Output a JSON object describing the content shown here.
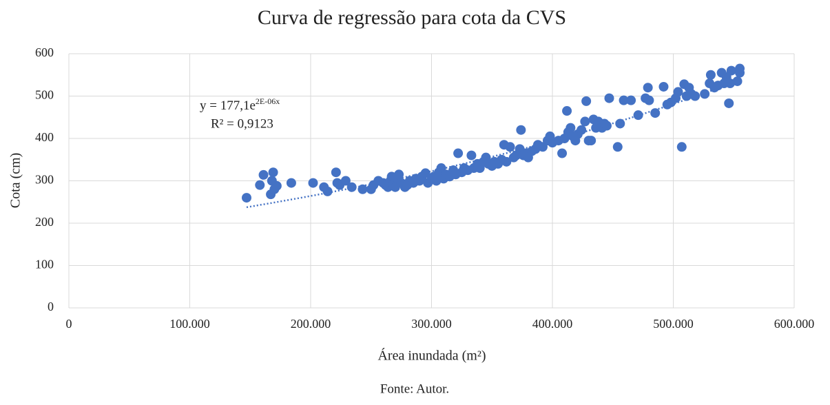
{
  "chart_data": {
    "type": "scatter",
    "title": "Curva de regressão para cota da CVS",
    "xlabel": "Área inundada (m²)",
    "ylabel": "Cota (cm)",
    "footer": "Fonte: Autor.",
    "color": "#4472c4",
    "grid": true,
    "xlim": [
      0,
      600000
    ],
    "ylim": [
      0,
      600
    ],
    "xticks": [
      0,
      {
        "value": 100000,
        "label": "100.000"
      },
      {
        "value": 200000,
        "label": "200.000"
      },
      {
        "value": 300000,
        "label": "300.000"
      },
      {
        "value": 400000,
        "label": "400.000"
      },
      {
        "value": 500000,
        "label": "500.000"
      },
      {
        "value": 600000,
        "label": "600.000"
      }
    ],
    "yticks": [
      0,
      100,
      200,
      300,
      400,
      500,
      600
    ],
    "trendline": {
      "kind": "exponential",
      "a": 177.1,
      "b": 2e-06,
      "from": 147000,
      "to": 556000,
      "equation": {
        "base": "y = 177,1e",
        "exponent": "2E-06x"
      },
      "r2": "R² = 0,9123"
    },
    "x": [
      147000,
      158000,
      161000,
      167000,
      169000,
      168000,
      170000,
      172000,
      184000,
      202000,
      211000,
      214000,
      221000,
      222000,
      224000,
      229000,
      234000,
      243000,
      250000,
      252000,
      256000,
      260000,
      262000,
      264000,
      266000,
      267000,
      268000,
      270000,
      272000,
      273000,
      275000,
      278000,
      280000,
      282000,
      285000,
      287000,
      290000,
      292000,
      295000,
      297000,
      300000,
      302000,
      304000,
      306000,
      308000,
      310000,
      312000,
      315000,
      318000,
      320000,
      322000,
      325000,
      327000,
      330000,
      333000,
      335000,
      338000,
      340000,
      343000,
      345000,
      347000,
      350000,
      352000,
      355000,
      358000,
      360000,
      362000,
      365000,
      368000,
      370000,
      373000,
      374000,
      376000,
      378000,
      380000,
      383000,
      386000,
      388000,
      392000,
      396000,
      398000,
      400000,
      405000,
      408000,
      410000,
      412000,
      413000,
      415000,
      417000,
      419000,
      421000,
      424000,
      427000,
      428000,
      430000,
      432000,
      434000,
      436000,
      438000,
      441000,
      443000,
      445000,
      447000,
      454000,
      456000,
      459000,
      465000,
      471000,
      477000,
      479000,
      480000,
      485000,
      492000,
      495000,
      498000,
      502000,
      504000,
      507000,
      509000,
      511000,
      513000,
      515000,
      518000,
      526000,
      530000,
      531000,
      534000,
      537000,
      540000,
      542000,
      544000,
      546000,
      547000,
      548000,
      553000,
      555000,
      555000
    ],
    "values": [
      260,
      290,
      314,
      268,
      320,
      300,
      280,
      288,
      295,
      295,
      285,
      275,
      320,
      295,
      290,
      300,
      285,
      280,
      280,
      290,
      300,
      295,
      290,
      285,
      300,
      310,
      290,
      285,
      305,
      315,
      295,
      285,
      290,
      300,
      295,
      305,
      300,
      310,
      318,
      295,
      305,
      310,
      300,
      320,
      330,
      305,
      315,
      310,
      325,
      315,
      365,
      320,
      330,
      325,
      360,
      330,
      340,
      330,
      345,
      355,
      340,
      335,
      345,
      340,
      350,
      385,
      345,
      380,
      355,
      360,
      375,
      420,
      360,
      365,
      355,
      370,
      375,
      385,
      380,
      395,
      405,
      390,
      395,
      365,
      400,
      465,
      415,
      425,
      405,
      395,
      410,
      420,
      440,
      488,
      395,
      395,
      445,
      425,
      440,
      425,
      435,
      430,
      495,
      380,
      435,
      490,
      490,
      455,
      495,
      520,
      490,
      460,
      522,
      480,
      485,
      495,
      510,
      380,
      528,
      500,
      520,
      505,
      500,
      505,
      530,
      550,
      520,
      525,
      555,
      530,
      545,
      483,
      530,
      560,
      535,
      565,
      555
    ]
  }
}
